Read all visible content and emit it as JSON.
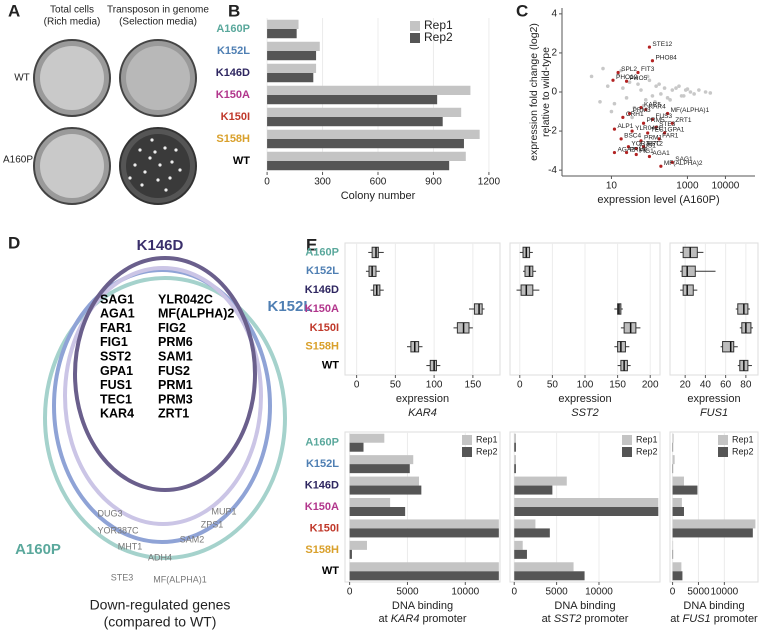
{
  "panel_labels": [
    "A",
    "B",
    "C",
    "D",
    "E"
  ],
  "plates": {
    "headers": [
      [
        "Total cells",
        "(Rich media)"
      ],
      [
        "Transposon in genome",
        "(Selection media)"
      ]
    ],
    "rows": [
      "WT",
      "A160P"
    ]
  },
  "chart_data": [
    {
      "type": "hbar",
      "categories": [
        "A160P",
        "K152L",
        "K146D",
        "K150A",
        "K150I",
        "S158H",
        "WT"
      ],
      "category_colors": [
        "#5aa89c",
        "#4f7fb3",
        "#2e2660",
        "#b2368c",
        "#c0392b",
        "#d9a02b",
        "#000000"
      ],
      "series": [
        {
          "name": "Rep1",
          "color": "#c4c4c4",
          "values": [
            170,
            285,
            265,
            1100,
            1050,
            1150,
            1075
          ]
        },
        {
          "name": "Rep2",
          "color": "#555555",
          "values": [
            160,
            265,
            250,
            920,
            950,
            1065,
            985
          ]
        }
      ],
      "xlim": [
        -60,
        1260
      ],
      "xticks": [
        0,
        300,
        600,
        900,
        1200
      ],
      "xlabel": "Colony number",
      "grid": true
    },
    {
      "type": "scatter",
      "xlog": true,
      "xlim": [
        0.5,
        60000
      ],
      "ylim": [
        -4.3,
        4.3
      ],
      "xticks": [
        10,
        1000,
        10000
      ],
      "yticks": [
        -4,
        -2,
        0,
        2,
        4
      ],
      "xlabel": "expression level (A160P)",
      "ylabel": [
        "expression fold change (log2)",
        "relative to wild-type"
      ],
      "series": [
        {
          "color": "#c8c8c8",
          "x": [
            3,
            5,
            8,
            12,
            15,
            20,
            25,
            30,
            40,
            50,
            60,
            80,
            100,
            120,
            150,
            200,
            250,
            300,
            400,
            500,
            700,
            900,
            1200,
            1500,
            2000,
            3000,
            4000,
            6,
            10,
            18,
            35,
            45,
            70,
            90,
            140,
            180,
            350,
            600,
            800,
            1000
          ],
          "values": [
            0.8,
            -0.5,
            0.3,
            -0.6,
            0.9,
            0.2,
            -0.3,
            0.5,
            -0.8,
            0.4,
            0.1,
            -0.4,
            0.6,
            -0.2,
            0.3,
            -0.1,
            0.2,
            -0.3,
            0.1,
            0.2,
            -0.2,
            0.1,
            0.0,
            -0.1,
            0.1,
            0.0,
            -0.05,
            1.2,
            -1.0,
            1.1,
            -1.3,
            0.7,
            -0.7,
            0.8,
            -0.5,
            0.4,
            -0.4,
            0.3,
            -0.2,
            0.15
          ]
        },
        {
          "color": "#b22222",
          "x": [
            100,
            120,
            15,
            50,
            11,
            25,
            60,
            80,
            30,
            300,
            20,
            120,
            70,
            400,
            150,
            12,
            35,
            90,
            250,
            180,
            18,
            60,
            28,
            70,
            45,
            12,
            25,
            45,
            100,
            400,
            200
          ],
          "values": [
            2.3,
            1.6,
            1.0,
            1.0,
            0.6,
            0.55,
            -0.8,
            -0.9,
            -1.1,
            -1.1,
            -1.3,
            -1.4,
            -1.6,
            -1.6,
            -1.8,
            -1.9,
            -2.0,
            -2.1,
            -2.1,
            -2.4,
            -2.4,
            -2.5,
            -2.8,
            -2.8,
            -2.9,
            -3.1,
            -3.1,
            -3.2,
            -3.3,
            -3.6,
            -3.8
          ],
          "labels": [
            "STE12",
            "PHO84",
            "SPL2",
            "FIT3",
            "PHO12",
            "PHO5",
            "KAR5",
            "KAR4",
            "PRM3",
            "MF(ALPHA)1",
            "CRH1",
            "FUS3",
            "PRM5",
            "ZRT1",
            "STE3",
            "ALP1",
            "YLR042C",
            "TEC1",
            "GPA1",
            "FAR1",
            "BSC4",
            "PRM1",
            "YOR387C",
            "SST2",
            "FUS1",
            "AGA2",
            "PRM6",
            "FIG1",
            "AGA1",
            "SAG1",
            "MF(ALPHA)2"
          ]
        }
      ]
    },
    {
      "type": "box",
      "categories": [
        "A160P",
        "K152L",
        "K146D",
        "K150A",
        "K150I",
        "S158H",
        "WT"
      ],
      "category_colors": [
        "#5aa89c",
        "#4f7fb3",
        "#2e2660",
        "#b2368c",
        "#c0392b",
        "#d9a02b",
        "#000000"
      ],
      "values": [
        [
          15,
          20,
          25,
          28,
          35
        ],
        [
          12,
          16,
          20,
          25,
          30
        ],
        [
          18,
          22,
          26,
          30,
          35
        ],
        [
          145,
          152,
          158,
          162,
          165
        ],
        [
          125,
          130,
          138,
          145,
          150
        ],
        [
          65,
          70,
          75,
          80,
          85
        ],
        [
          90,
          95,
          100,
          103,
          108
        ]
      ],
      "xlim": [
        -15,
        185
      ],
      "xticks": [
        0,
        50,
        100,
        150
      ],
      "xlabel": "expression",
      "gene": "KAR4",
      "grid": true
    },
    {
      "type": "box",
      "categories": [
        "A160P",
        "K152L",
        "K146D",
        "K150A",
        "K150I",
        "S158H",
        "WT"
      ],
      "values": [
        [
          0,
          5,
          10,
          15,
          20
        ],
        [
          5,
          8,
          15,
          20,
          25
        ],
        [
          -5,
          2,
          10,
          20,
          30
        ],
        [
          145,
          150,
          152,
          155,
          158
        ],
        [
          155,
          160,
          170,
          178,
          185
        ],
        [
          145,
          150,
          155,
          162,
          168
        ],
        [
          150,
          155,
          160,
          165,
          170
        ]
      ],
      "xlim": [
        -15,
        215
      ],
      "xticks": [
        0,
        50,
        100,
        150,
        200
      ],
      "xlabel": "expression",
      "gene": "SST2",
      "grid": true
    },
    {
      "type": "box",
      "categories": [
        "A160P",
        "K152L",
        "K146D",
        "K150A",
        "K150I",
        "S158H",
        "WT"
      ],
      "values": [
        [
          15,
          18,
          25,
          32,
          38
        ],
        [
          15,
          17,
          22,
          30,
          50
        ],
        [
          15,
          18,
          22,
          28,
          32
        ],
        [
          70,
          72,
          78,
          82,
          84
        ],
        [
          74,
          76,
          80,
          85,
          87
        ],
        [
          55,
          57,
          65,
          68,
          72
        ],
        [
          72,
          74,
          78,
          82,
          86
        ]
      ],
      "xlim": [
        5,
        92
      ],
      "xticks": [
        20,
        40,
        60,
        80
      ],
      "xlabel": "expression",
      "gene": "FUS1",
      "grid": true
    },
    {
      "type": "hbar",
      "categories": [
        "A160P",
        "K152L",
        "K146D",
        "K150A",
        "K150I",
        "S158H",
        "WT"
      ],
      "category_colors": [
        "#5aa89c",
        "#4f7fb3",
        "#2e2660",
        "#b2368c",
        "#c0392b",
        "#d9a02b",
        "#000000"
      ],
      "series": [
        {
          "name": "Rep1",
          "color": "#c4c4c4",
          "values": [
            3000,
            5500,
            6000,
            3500,
            12900,
            1500,
            12900
          ]
        },
        {
          "name": "Rep2",
          "color": "#555555",
          "values": [
            1200,
            5200,
            6200,
            4800,
            12900,
            200,
            12900
          ]
        }
      ],
      "xlim": [
        -400,
        13000
      ],
      "xticks": [
        0,
        5000,
        10000
      ],
      "xlabel": [
        "DNA binding",
        "at",
        "promoter"
      ],
      "gene": "KAR4",
      "grid": true
    },
    {
      "type": "hbar",
      "categories": [
        "A160P",
        "K152L",
        "K146D",
        "K150A",
        "K150I",
        "S158H",
        "WT"
      ],
      "series": [
        {
          "name": "Rep1",
          "color": "#c4c4c4",
          "values": [
            200,
            200,
            6200,
            17000,
            2500,
            1000,
            7000
          ]
        },
        {
          "name": "Rep2",
          "color": "#555555",
          "values": [
            200,
            200,
            4500,
            17000,
            4200,
            1500,
            8300
          ]
        }
      ],
      "xlim": [
        -500,
        17200
      ],
      "xticks": [
        0,
        5000,
        10000
      ],
      "xlabel": [
        "DNA binding",
        "at",
        "promoter"
      ],
      "gene": "SST2",
      "grid": true
    },
    {
      "type": "hbar",
      "categories": [
        "A160P",
        "K152L",
        "K146D",
        "K150A",
        "K150I",
        "S158H",
        "WT"
      ],
      "series": [
        {
          "name": "Rep1",
          "color": "#c4c4c4",
          "values": [
            200,
            400,
            2200,
            1800,
            16000,
            100,
            1700
          ]
        },
        {
          "name": "Rep2",
          "color": "#555555",
          "values": [
            100,
            100,
            4800,
            2200,
            15500,
            100,
            1900
          ]
        }
      ],
      "xlim": [
        -500,
        16500
      ],
      "xticks": [
        0,
        5000,
        10000
      ],
      "xlabel": [
        "DNA binding",
        "at",
        "promoter"
      ],
      "gene": "FUS1",
      "grid": true
    }
  ],
  "venn": {
    "sets": [
      "K146D",
      "K152L",
      "A160P"
    ],
    "genes": [
      "SAG1",
      "AGA1",
      "FAR1",
      "FIG1",
      "SST2",
      "GPA1",
      "FUS1",
      "TEC1",
      "KAR4",
      "YLR042C",
      "MF(ALPHA)2",
      "FIG2",
      "PRM6",
      "SAM1",
      "FUS2",
      "PRM1",
      "PRM3",
      "ZRT1"
    ],
    "others": [
      "DUG3",
      "YOR387C",
      "MHT1",
      "ADH4",
      "SAM2",
      "ZPS1",
      "MUP1",
      "STE3",
      "MF(ALPHA)1"
    ],
    "caption": [
      "Down-regulated genes",
      "(compared to WT)"
    ]
  }
}
